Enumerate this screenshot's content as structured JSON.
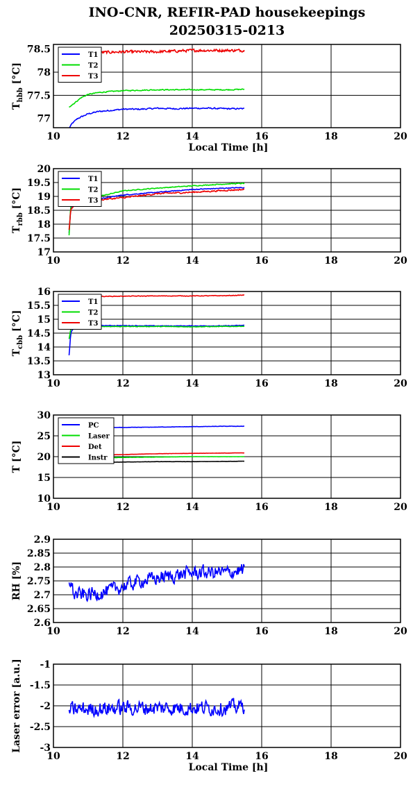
{
  "title_line1": "INO-CNR, REFIR-PAD housekeepings",
  "title_line2": "20250315-0213",
  "chart_data": [
    {
      "type": "line",
      "ylabel_main": "T",
      "ylabel_sub": "hbb",
      "ylabel_unit": "[°C]",
      "xlabel": "Local Time [h]",
      "xlim": [
        10,
        20
      ],
      "ylim": [
        76.8,
        78.6
      ],
      "xticks": [
        "10",
        "12",
        "14",
        "16",
        "18",
        "20"
      ],
      "yticks": [
        "77",
        "77.5",
        "78",
        "78.5"
      ],
      "yticks_at": [
        77,
        77.5,
        78,
        78.5
      ],
      "grid": true,
      "legend_position": "top-left",
      "series": [
        {
          "name": "T1",
          "color": "#0000ff",
          "points": [
            [
              10.45,
              76.79
            ],
            [
              10.55,
              76.9
            ],
            [
              10.7,
              77.0
            ],
            [
              10.85,
              77.05
            ],
            [
              11.0,
              77.1
            ],
            [
              11.3,
              77.15
            ],
            [
              11.6,
              77.17
            ],
            [
              12.0,
              77.2
            ],
            [
              12.5,
              77.2
            ],
            [
              13.0,
              77.22
            ],
            [
              13.5,
              77.21
            ],
            [
              14.0,
              77.22
            ],
            [
              14.5,
              77.22
            ],
            [
              15.0,
              77.21
            ],
            [
              15.5,
              77.21
            ]
          ],
          "noise": 0.02
        },
        {
          "name": "T2",
          "color": "#00dd00",
          "points": [
            [
              10.45,
              77.25
            ],
            [
              10.6,
              77.33
            ],
            [
              10.8,
              77.45
            ],
            [
              11.0,
              77.52
            ],
            [
              11.3,
              77.56
            ],
            [
              11.6,
              77.58
            ],
            [
              12.0,
              77.6
            ],
            [
              12.5,
              77.61
            ],
            [
              13.0,
              77.62
            ],
            [
              14.0,
              77.62
            ],
            [
              15.0,
              77.62
            ],
            [
              15.5,
              77.63
            ]
          ],
          "noise": 0.015
        },
        {
          "name": "T3",
          "color": "#ee0000",
          "points": [
            [
              11.0,
              78.42
            ],
            [
              12.0,
              78.44
            ],
            [
              13.0,
              78.44
            ],
            [
              14.0,
              78.47
            ],
            [
              15.0,
              78.47
            ],
            [
              15.5,
              78.47
            ]
          ],
          "noise": 0.04
        }
      ]
    },
    {
      "type": "line",
      "ylabel_main": "T",
      "ylabel_sub": "rbb",
      "ylabel_unit": "[°C]",
      "xlabel": "",
      "xlim": [
        10,
        20
      ],
      "ylim": [
        17,
        20
      ],
      "xticks": [
        "10",
        "12",
        "14",
        "16",
        "18",
        "20"
      ],
      "yticks": [
        "17",
        "17.5",
        "18",
        "18.5",
        "19",
        "19.5",
        "20"
      ],
      "yticks_at": [
        17,
        17.5,
        18,
        18.5,
        19,
        19.5,
        20
      ],
      "grid": true,
      "legend_position": "top-left",
      "series": [
        {
          "name": "T1",
          "color": "#0000ff",
          "points": [
            [
              10.45,
              17.7
            ],
            [
              10.5,
              18.6
            ],
            [
              10.6,
              18.75
            ],
            [
              11.0,
              18.85
            ],
            [
              11.5,
              18.95
            ],
            [
              12.0,
              19.05
            ],
            [
              13.0,
              19.15
            ],
            [
              14.0,
              19.25
            ],
            [
              15.0,
              19.3
            ],
            [
              15.5,
              19.32
            ]
          ],
          "noise": 0.02
        },
        {
          "name": "T2",
          "color": "#00dd00",
          "points": [
            [
              10.45,
              17.6
            ],
            [
              10.5,
              18.7
            ],
            [
              10.6,
              18.85
            ],
            [
              11.0,
              18.95
            ],
            [
              11.5,
              19.05
            ],
            [
              12.0,
              19.2
            ],
            [
              13.0,
              19.3
            ],
            [
              14.0,
              19.38
            ],
            [
              15.0,
              19.45
            ],
            [
              15.5,
              19.47
            ]
          ],
          "noise": 0.02
        },
        {
          "name": "T3",
          "color": "#ee0000",
          "points": [
            [
              10.45,
              17.8
            ],
            [
              10.5,
              18.5
            ],
            [
              10.6,
              18.65
            ],
            [
              11.0,
              18.8
            ],
            [
              11.5,
              18.9
            ],
            [
              12.0,
              18.95
            ],
            [
              13.0,
              19.1
            ],
            [
              14.0,
              19.15
            ],
            [
              15.0,
              19.22
            ],
            [
              15.5,
              19.25
            ]
          ],
          "noise": 0.035
        }
      ]
    },
    {
      "type": "line",
      "ylabel_main": "T",
      "ylabel_sub": "cbb",
      "ylabel_unit": "[°C]",
      "xlabel": "",
      "xlim": [
        10,
        20
      ],
      "ylim": [
        13,
        16
      ],
      "xticks": [
        "10",
        "12",
        "14",
        "16",
        "18",
        "20"
      ],
      "yticks": [
        "13",
        "13.5",
        "14",
        "14.5",
        "15",
        "15.5",
        "16"
      ],
      "yticks_at": [
        13,
        13.5,
        14,
        14.5,
        15,
        15.5,
        16
      ],
      "grid": true,
      "legend_position": "top-left",
      "series": [
        {
          "name": "T1",
          "color": "#0000ff",
          "points": [
            [
              10.45,
              13.7
            ],
            [
              10.5,
              14.5
            ],
            [
              10.6,
              14.75
            ],
            [
              11.0,
              14.77
            ],
            [
              12.0,
              14.77
            ],
            [
              13.0,
              14.76
            ],
            [
              14.0,
              14.76
            ],
            [
              15.0,
              14.76
            ],
            [
              15.5,
              14.78
            ]
          ],
          "noise": 0.015
        },
        {
          "name": "T2",
          "color": "#00dd00",
          "points": [
            [
              10.45,
              14.3
            ],
            [
              10.5,
              14.65
            ],
            [
              10.6,
              14.72
            ],
            [
              11.0,
              14.74
            ],
            [
              12.0,
              14.74
            ],
            [
              13.0,
              14.74
            ],
            [
              14.0,
              14.73
            ],
            [
              15.0,
              14.74
            ],
            [
              15.5,
              14.75
            ]
          ],
          "noise": 0.015
        },
        {
          "name": "T3",
          "color": "#ee0000",
          "points": [
            [
              10.45,
              15.8
            ],
            [
              11.0,
              15.82
            ],
            [
              12.0,
              15.83
            ],
            [
              13.0,
              15.84
            ],
            [
              14.0,
              15.84
            ],
            [
              15.0,
              15.85
            ],
            [
              15.5,
              15.87
            ]
          ],
          "noise": 0.015
        }
      ]
    },
    {
      "type": "line",
      "ylabel_main": "T [°C]",
      "ylabel_sub": "",
      "ylabel_unit": "",
      "xlabel": "",
      "xlim": [
        10,
        20
      ],
      "ylim": [
        10,
        30
      ],
      "xticks": [
        "10",
        "12",
        "14",
        "16",
        "18",
        "20"
      ],
      "yticks": [
        "10",
        "15",
        "20",
        "25",
        "30"
      ],
      "yticks_at": [
        10,
        15,
        20,
        25,
        30
      ],
      "grid": true,
      "legend_position": "top-left",
      "series": [
        {
          "name": "PC",
          "color": "#0000ff",
          "points": [
            [
              10.45,
              27.0
            ],
            [
              12.0,
              27.0
            ],
            [
              13.0,
              27.1
            ],
            [
              14.0,
              27.2
            ],
            [
              15.0,
              27.3
            ],
            [
              15.5,
              27.3
            ]
          ],
          "noise": 0.05
        },
        {
          "name": "Laser",
          "color": "#00dd00",
          "points": [
            [
              10.45,
              19.7
            ],
            [
              12.0,
              19.8
            ],
            [
              13.0,
              19.9
            ],
            [
              14.0,
              20.0
            ],
            [
              15.5,
              20.0
            ]
          ],
          "noise": 0.03
        },
        {
          "name": "Det",
          "color": "#ee0000",
          "points": [
            [
              10.45,
              20.3
            ],
            [
              12.0,
              20.5
            ],
            [
              13.0,
              20.7
            ],
            [
              14.0,
              20.8
            ],
            [
              15.5,
              20.9
            ]
          ],
          "noise": 0.03
        },
        {
          "name": "Instr",
          "color": "#000000",
          "points": [
            [
              10.45,
              18.6
            ],
            [
              12.0,
              18.7
            ],
            [
              13.0,
              18.8
            ],
            [
              14.0,
              18.8
            ],
            [
              15.5,
              18.9
            ]
          ],
          "noise": 0.03
        }
      ]
    },
    {
      "type": "line",
      "ylabel_main": "RH [%]",
      "ylabel_sub": "",
      "ylabel_unit": "",
      "xlabel": "",
      "xlim": [
        10,
        20
      ],
      "ylim": [
        2.6,
        2.9
      ],
      "xticks": [
        "10",
        "12",
        "14",
        "16",
        "18",
        "20"
      ],
      "yticks": [
        "2.6",
        "2.65",
        "2.7",
        "2.75",
        "2.8",
        "2.85",
        "2.9"
      ],
      "yticks_at": [
        2.6,
        2.65,
        2.7,
        2.75,
        2.8,
        2.85,
        2.9
      ],
      "grid": true,
      "legend_position": "",
      "series": [
        {
          "name": "",
          "color": "#0000ff",
          "points": [
            [
              10.45,
              2.76
            ],
            [
              10.6,
              2.7
            ],
            [
              11.0,
              2.7
            ],
            [
              11.5,
              2.71
            ],
            [
              12.0,
              2.73
            ],
            [
              12.5,
              2.75
            ],
            [
              13.0,
              2.76
            ],
            [
              13.5,
              2.77
            ],
            [
              14.0,
              2.78
            ],
            [
              14.5,
              2.78
            ],
            [
              15.0,
              2.78
            ],
            [
              15.5,
              2.79
            ]
          ],
          "noise": 0.035
        }
      ]
    },
    {
      "type": "line",
      "ylabel_main": "Laser error [a.u.]",
      "ylabel_sub": "",
      "ylabel_unit": "",
      "xlabel": "Local Time [h]",
      "xlim": [
        10,
        20
      ],
      "ylim": [
        -3,
        -1
      ],
      "xticks": [
        "10",
        "12",
        "14",
        "16",
        "18",
        "20"
      ],
      "yticks": [
        "-3",
        "-2.5",
        "-2",
        "-1.5",
        "-1"
      ],
      "yticks_at": [
        -3,
        -2.5,
        -2,
        -1.5,
        -1
      ],
      "grid": true,
      "legend_position": "",
      "series": [
        {
          "name": "",
          "color": "#0000ff",
          "points": [
            [
              10.45,
              -2.1
            ],
            [
              12.0,
              -2.05
            ],
            [
              13.0,
              -2.05
            ],
            [
              14.0,
              -2.05
            ],
            [
              15.0,
              -2.05
            ],
            [
              15.5,
              -2.0
            ]
          ],
          "noise": 0.25
        }
      ]
    }
  ]
}
